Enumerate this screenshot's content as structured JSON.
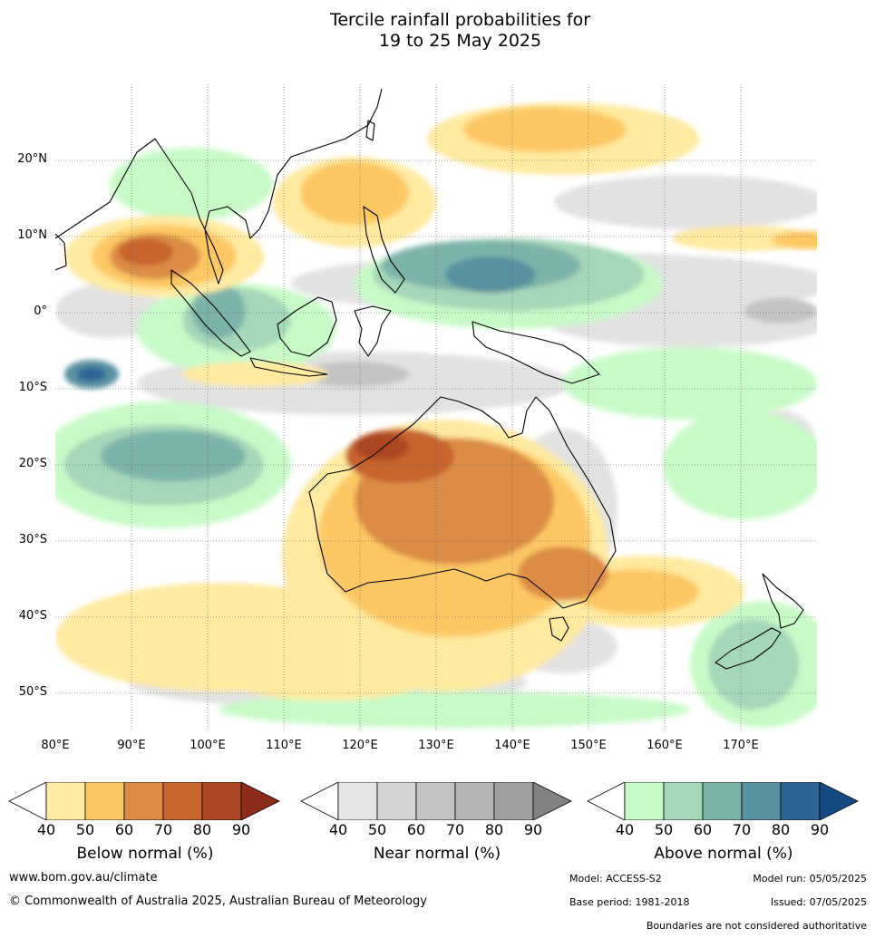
{
  "title": {
    "line1": "Tercile rainfall probabilities for",
    "line2": "19 to 25 May 2025"
  },
  "map": {
    "lat_labels": [
      "20°N",
      "10°N",
      "0°",
      "10°S",
      "20°S",
      "30°S",
      "40°S",
      "50°S"
    ],
    "lon_labels": [
      "80°E",
      "90°E",
      "100°E",
      "110°E",
      "120°E",
      "130°E",
      "140°E",
      "150°E",
      "160°E",
      "170°E"
    ],
    "lon_range": [
      80,
      180
    ],
    "lat_range": [
      -55,
      30
    ]
  },
  "legend": {
    "below": {
      "title": "Below normal (%)",
      "ticks": [
        "40",
        "50",
        "60",
        "70",
        "80",
        "90"
      ],
      "colors": [
        "#ffffff",
        "#ffeaa0",
        "#fdc864",
        "#dc8c46",
        "#c8642d",
        "#aa4623",
        "#8c2d19"
      ]
    },
    "near": {
      "title": "Near normal (%)",
      "ticks": [
        "40",
        "50",
        "60",
        "70",
        "80",
        "90"
      ],
      "colors": [
        "#ffffff",
        "#e6e6e6",
        "#d4d4d4",
        "#c3c3c3",
        "#b4b4b4",
        "#a0a0a0",
        "#828282"
      ]
    },
    "above": {
      "title": "Above normal (%)",
      "ticks": [
        "40",
        "50",
        "60",
        "70",
        "80",
        "90"
      ],
      "colors": [
        "#ffffff",
        "#c8fac8",
        "#a5d7b9",
        "#7db4aa",
        "#5a91a0",
        "#2d6496",
        "#144b82"
      ]
    }
  },
  "footer": {
    "website": "www.bom.gov.au/climate",
    "copyright": "© Commonwealth of Australia 2025, Australian Bureau of Meteorology",
    "model": "Model: ACCESS-S2",
    "model_run": "Model run: 05/05/2025",
    "base_period": "Base period: 1981-2018",
    "issued": "Issued: 07/05/2025",
    "disclaimer": "Boundaries are not considered authoritative"
  }
}
